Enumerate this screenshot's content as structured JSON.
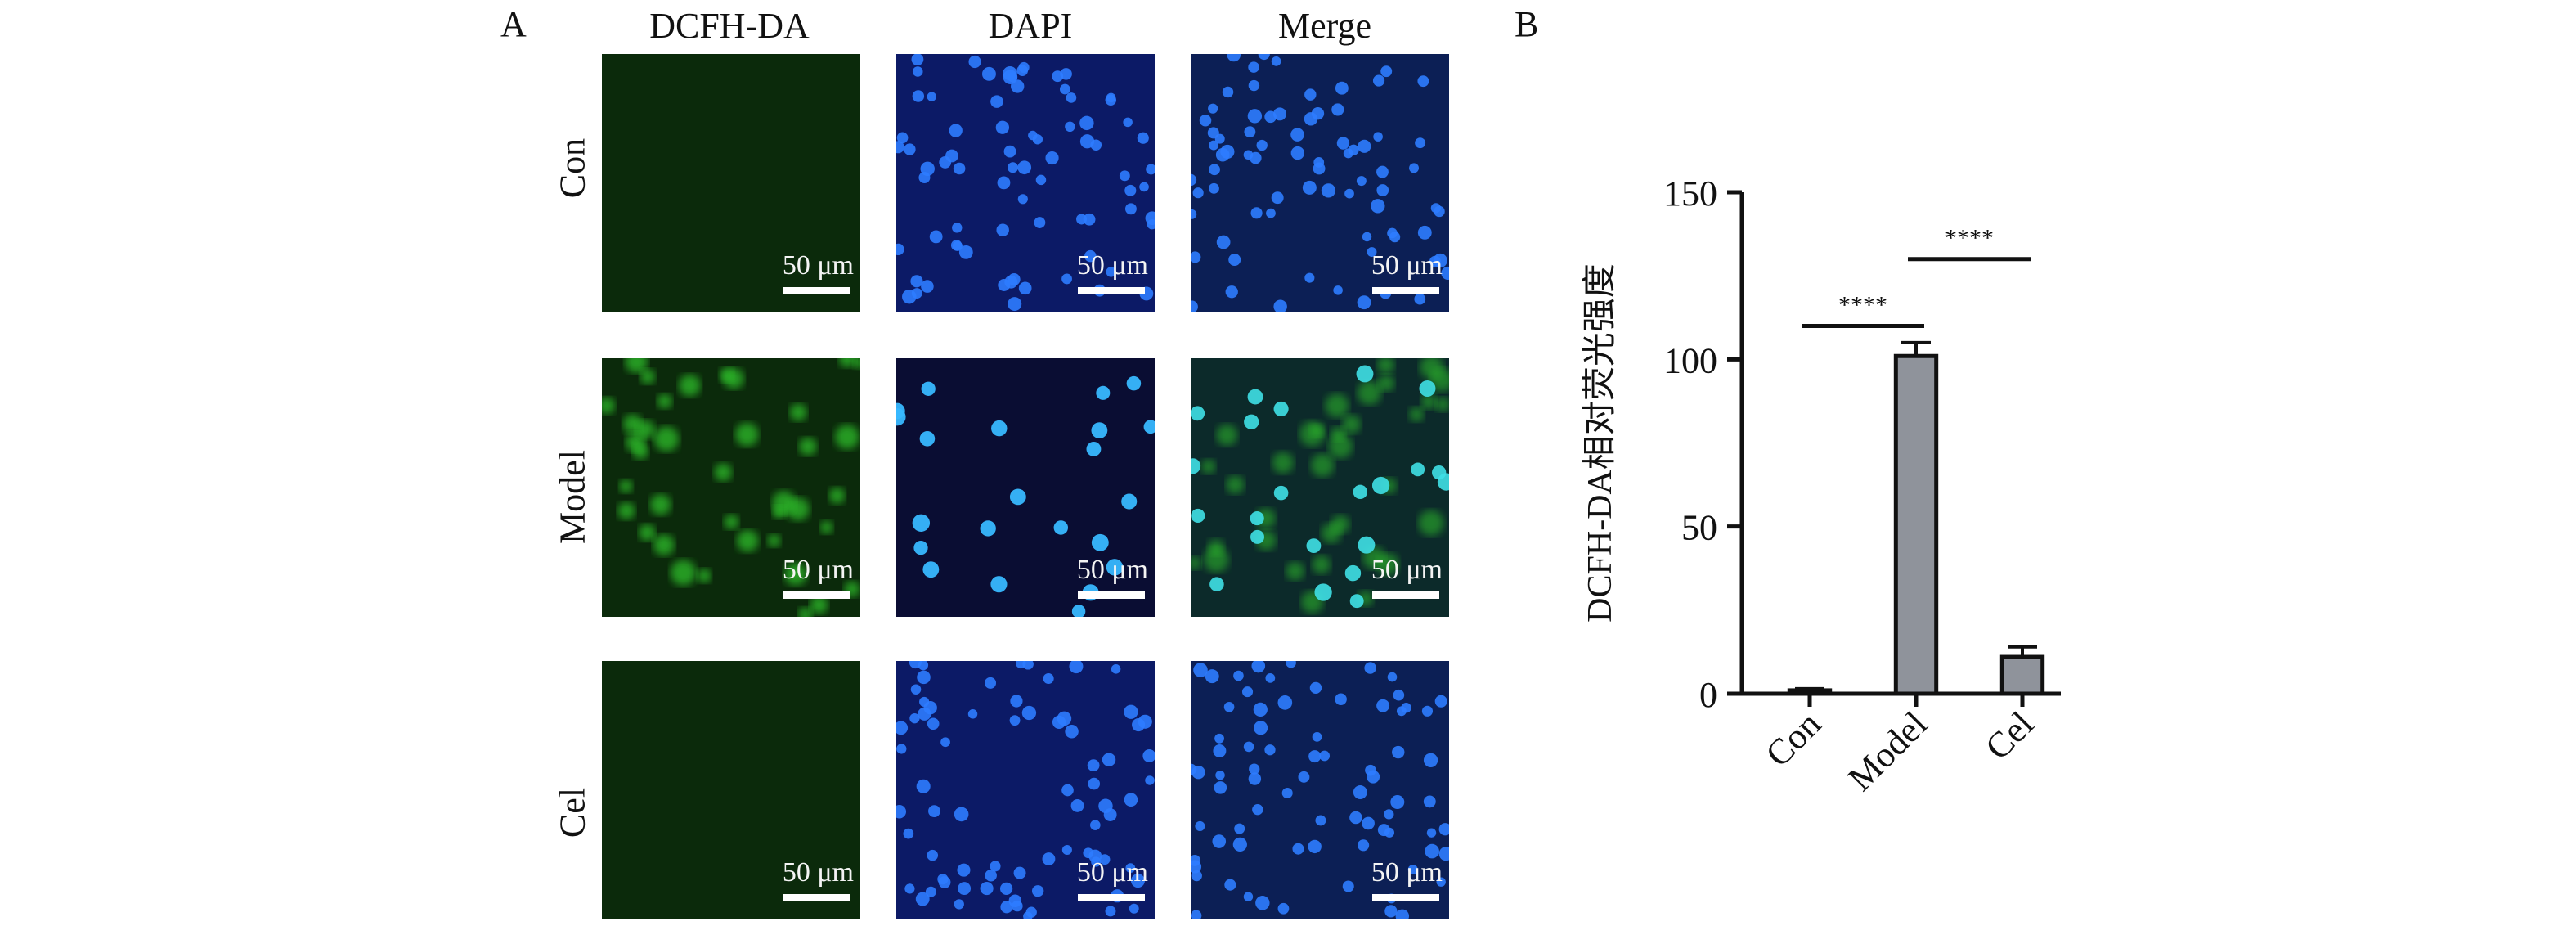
{
  "figure": {
    "panel_a": {
      "letter": "A",
      "columns": [
        "DCFH-DA",
        "DAPI",
        "Merge"
      ],
      "rows": [
        "Con",
        "Model",
        "Cel"
      ],
      "scale_bar_label": "50 μm"
    },
    "panel_b": {
      "letter": "B"
    }
  },
  "colors": {
    "green_channel": "#2fbf2a",
    "blue_channel": "#2d7cff",
    "bar_fill": "#8f939b",
    "bar_edge": "#111111"
  },
  "chart_data": {
    "type": "bar",
    "categories": [
      "Con",
      "Model",
      "Cel"
    ],
    "values": [
      1,
      101,
      11
    ],
    "errors": [
      0.5,
      4,
      3
    ],
    "ylabel": "DCFH-DA相对荧光强度",
    "xlabel": "",
    "ylim": [
      0,
      150
    ],
    "yticks": [
      0,
      50,
      100,
      150
    ],
    "grid": false,
    "significance": [
      {
        "from": "Con",
        "to": "Model",
        "label": "****",
        "y": 110
      },
      {
        "from": "Model",
        "to": "Cel",
        "label": "****",
        "y": 130
      }
    ]
  }
}
